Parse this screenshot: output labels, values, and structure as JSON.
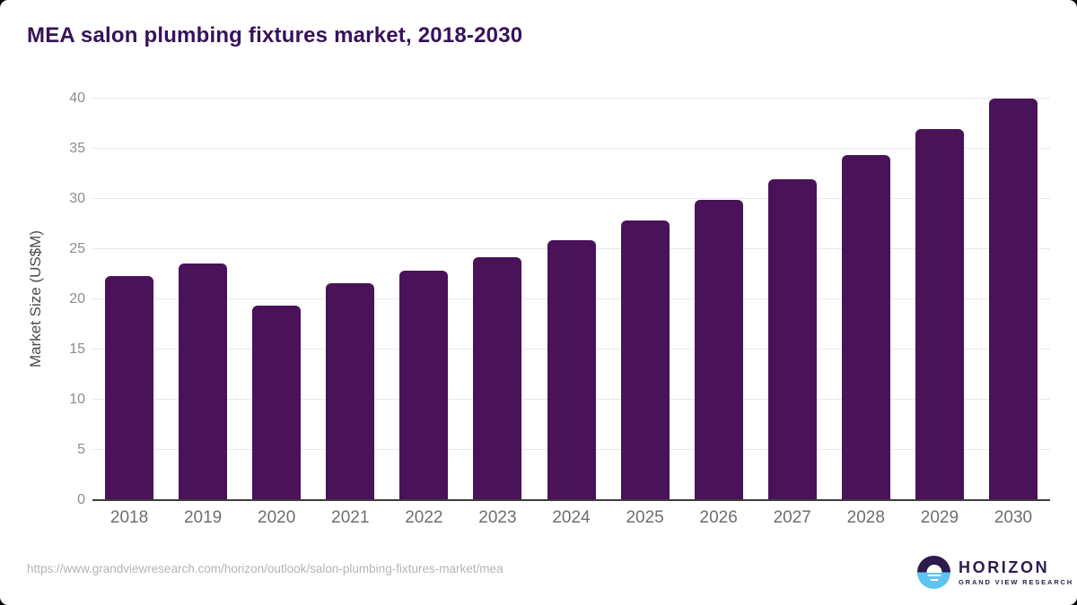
{
  "header": {
    "title": "MEA salon plumbing fixtures market, 2018-2030"
  },
  "chart_data": {
    "type": "bar",
    "title": "MEA salon plumbing fixtures market, 2018-2030",
    "categories": [
      "2018",
      "2019",
      "2020",
      "2021",
      "2022",
      "2023",
      "2024",
      "2025",
      "2026",
      "2027",
      "2028",
      "2029",
      "2030"
    ],
    "values": [
      22.3,
      23.6,
      19.4,
      21.6,
      22.9,
      24.2,
      25.9,
      27.9,
      29.9,
      32.0,
      34.4,
      37.0,
      40.0
    ],
    "xlabel": "",
    "ylabel": "Market Size (US$M)",
    "ylim": [
      0,
      40
    ],
    "yticks": [
      0,
      5,
      10,
      15,
      20,
      25,
      30,
      35,
      40
    ],
    "grid": "horizontal",
    "legend": "none",
    "bar_color": "#4a1259"
  },
  "footer": {
    "source_url": "https://www.grandviewresearch.com/horizon/outlook/salon-plumbing-fixtures-market/mea",
    "logo": {
      "title": "HORIZON",
      "subtitle": "GRAND VIEW RESEARCH"
    }
  },
  "colors": {
    "title_text": "#36125a",
    "bar_fill": "#4a1259",
    "gridline": "#e9e9e9",
    "axis_line": "#3c3c3c",
    "y_tick_text": "#8c8c8c",
    "x_tick_text": "#6e6e6e",
    "axis_title_text": "#4c4c4c",
    "source_text": "#b4b4b4",
    "logo_purple": "#2d1b4e",
    "logo_blue": "#5ec3f0"
  }
}
